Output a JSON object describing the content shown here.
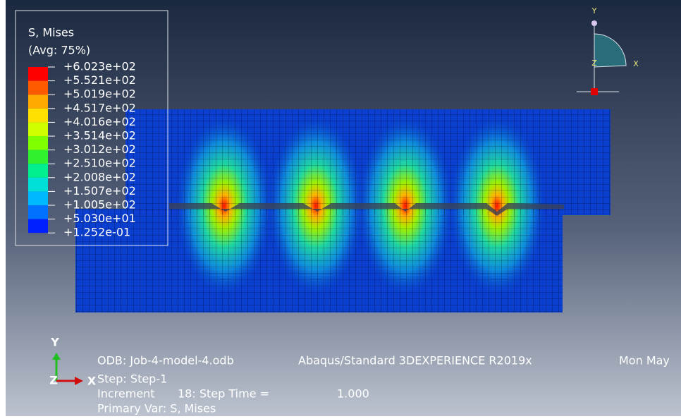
{
  "legend": {
    "title": "S, Mises",
    "subtitle": "(Avg: 75%)",
    "labels": [
      "+6.023e+02",
      "+5.521e+02",
      "+5.019e+02",
      "+4.517e+02",
      "+4.016e+02",
      "+3.514e+02",
      "+3.012e+02",
      "+2.510e+02",
      "+2.008e+02",
      "+1.507e+02",
      "+1.005e+02",
      "+5.030e+01",
      "+1.252e-01"
    ]
  },
  "viewport_triad": {
    "y": "Y",
    "x": "X",
    "z": "Z"
  },
  "bottom_triad": {
    "y": "Y",
    "x": "X",
    "z": "Z"
  },
  "info": {
    "odb": "ODB: Job-4-model-4.odb",
    "solver": "Abaqus/Standard 3DEXPERIENCE R2019x",
    "date": "Mon May",
    "step": "Step: Step-1",
    "increment": {
      "label": "Increment",
      "number": "18: Step Time =",
      "time": "1.000"
    },
    "primary_var": "Primary Var: S, Mises"
  }
}
